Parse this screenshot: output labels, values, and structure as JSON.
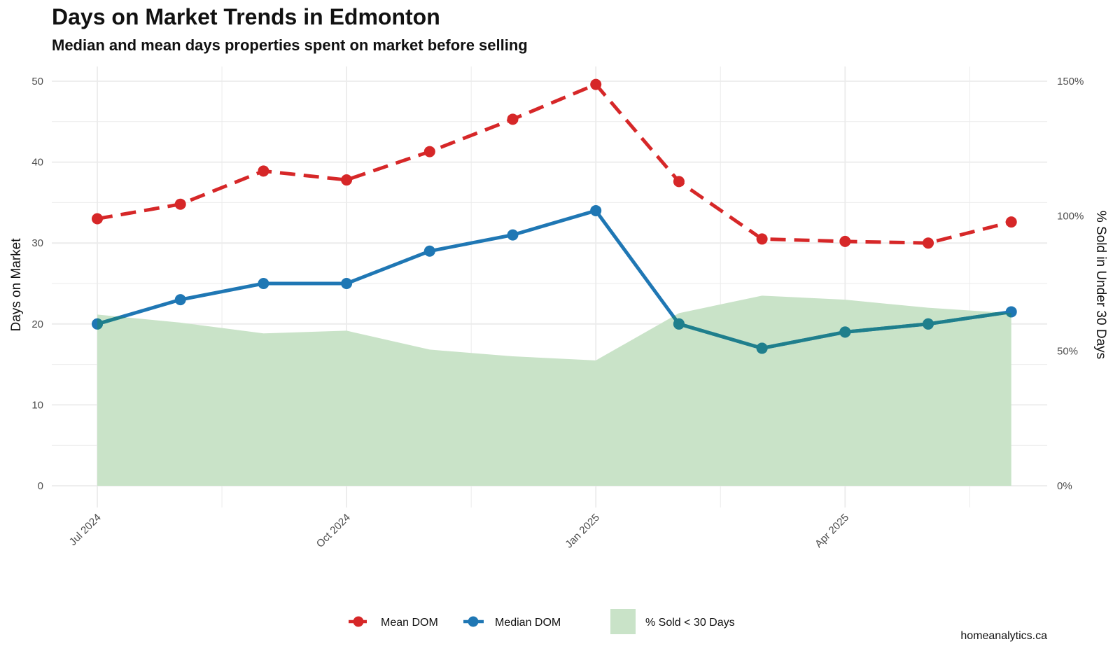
{
  "title": "Days on Market Trends in Edmonton",
  "subtitle": "Median and mean days properties spent on market before selling",
  "caption": "homeanalytics.ca",
  "colors": {
    "mean": "#d62728",
    "median": "#1f77b4",
    "overlap": "#1f7f8c",
    "area": "#c9e3c8",
    "grid": "#ebebeb"
  },
  "chart_data": {
    "type": "line",
    "x": [
      "2024-07",
      "2024-08",
      "2024-09",
      "2024-10",
      "2024-11",
      "2024-12",
      "2025-01",
      "2025-02",
      "2025-03",
      "2025-04",
      "2025-05",
      "2025-06"
    ],
    "x_tick_labels": [
      "Jul 2024",
      "Oct 2024",
      "Jan 2025",
      "Apr 2025"
    ],
    "x_tick_positions": [
      "2024-07",
      "2024-10",
      "2025-01",
      "2025-04"
    ],
    "series": [
      {
        "name": "Mean DOM",
        "style": "dashed",
        "values": [
          33.0,
          34.8,
          38.9,
          37.8,
          41.3,
          45.3,
          49.6,
          37.6,
          30.5,
          30.2,
          30.0,
          32.6
        ]
      },
      {
        "name": "Median DOM",
        "style": "solid",
        "values": [
          20,
          23,
          25,
          25,
          29,
          31,
          34,
          20,
          17,
          19,
          20,
          21.5
        ]
      },
      {
        "name": "% Sold < 30 Days",
        "style": "area",
        "axis": "right",
        "values": [
          63.5,
          60.5,
          56.5,
          57.5,
          50.5,
          48.0,
          46.5,
          64.0,
          70.5,
          69.0,
          66.0,
          64.0
        ]
      }
    ],
    "ylabel": "Days on Market",
    "ylim": [
      0,
      50
    ],
    "yticks": [
      0,
      10,
      20,
      30,
      40,
      50
    ],
    "y2label": "% Sold in Under 30 Days",
    "y2lim": [
      0,
      150
    ],
    "y2ticks": [
      "0%",
      "50%",
      "100%",
      "150%"
    ],
    "legend_position": "bottom",
    "grid": true
  }
}
